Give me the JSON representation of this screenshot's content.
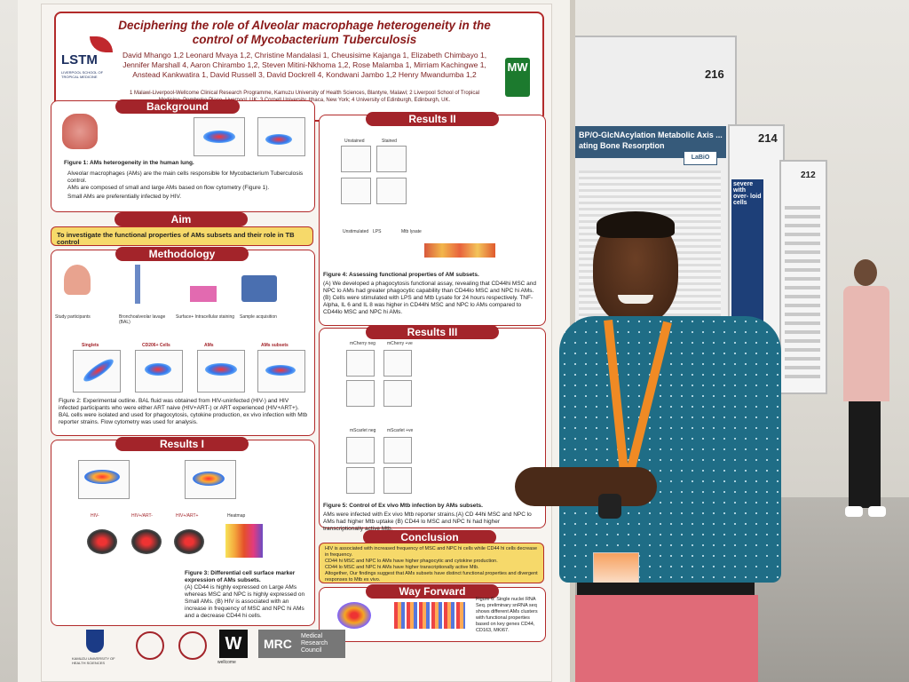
{
  "poster": {
    "title": "Deciphering the role of Alveolar macrophage heterogeneity in the control of Mycobacterium Tuberculosis",
    "authors": "David Mhango 1,2 Leonard Mvaya 1,2, Christine Mandalasi 1, Cheusisime Kajanga 1, Elizabeth Chimbayo 1, Jennifer Marshall 4, Aaron Chirambo 1,2, Steven Mitini-Nkhoma 1,2, Rose Malamba 1, Mirriam Kachingwe 1, Anstead Kankwatira 1, David Russell 3, David Dockrell 4, Kondwani Jambo 1,2 Henry Mwandumba 1,2",
    "affiliations": "1 Malawi-Liverpool-Wellcome Clinical Research Programme, Kamuzu University of Health Sciences, Blantyre, Malawi; 2 Liverpool School of Tropical Medicine, Pembroke Place, Liverpool, UK; 3 Cornell University, Ithaca, New York; 4 University of Edinburgh, Edinburgh, UK.",
    "logo_left": "LSTM",
    "logo_left_sub": "LIVERPOOL SCHOOL OF TROPICAL MEDICINE",
    "logo_right": "MW",
    "sections": {
      "background": "Background",
      "aim": "Aim",
      "methodology": "Methodology",
      "results1": "Results I",
      "results2": "Results II",
      "results3": "Results III",
      "conclusion": "Conclusion",
      "way_forward": "Way Forward"
    },
    "background_caption": "Figure 1: AMs heterogeneity in the human lung.",
    "background_bullets": [
      "Alveolar macrophages (AMs) are the main cells responsible for Mycobacterium Tuberculosis control.",
      "AMs are composed of small and large AMs based on flow cytometry (Figure 1).",
      "Small AMs are preferentially infected by HIV."
    ],
    "aim_text": "To investigate the functional properties of AMs subsets and their role in TB control",
    "method_caption": "Figure 2: Experimental outline. BAL fluid was obtained from HIV-uninfected (HIV-) and HIV infected participants who were either ART naive (HIV+ART-) or ART experienced (HIV+ART+). BAL cells were isolated and used for phagocytosis, cytokine production, ex vivo infection with Mtb reporter strains. Flow cytometry was used for analysis.",
    "method_steps": [
      "Study participants",
      "Bronchoalveolar lavage (BAL)",
      "Surface+ Intracellular staining",
      "Sample acquisition"
    ],
    "gates": [
      "Singlets",
      "CD206+ Cells",
      "AMs",
      "AMs subsets"
    ],
    "results1_caption": "Figure 3: Differential cell surface marker expression of AMs subsets.",
    "results1_text": "(A) CD44 is highly expressed on Large AMs whereas MSC and NPC is highly expressed on Small AMs. (B) HIV is associated with an increase in frequency of MSC and NPC hi AMs and a decrease CD44 hi cells.",
    "results1_groups": [
      "HIV-",
      "HIV+/ART-",
      "HIV+/ART+",
      "Heatmap"
    ],
    "results2_caption": "Figure 4: Assessing functional properties of AM subsets.",
    "results2_text": "(A) We developed a phagocytosis functional assay, revealing that CD44hi MSC and NPC lo AMs had greater phagocytic capability than CD44lo MSC and NPC hi AMs. (B) Cells were stimulated with LPS and Mtb Lysate for 24 hours respectively. TNF-Alpha, IL 6 and IL 8 was higher in CD44hi MSC and NPC lo AMs compared to CD44lo MSC and NPC hi AMs.",
    "results2_panels": [
      "Unstained",
      "Stained",
      "Unstimulated",
      "LPS",
      "Mtb lysate"
    ],
    "results3_caption": "Figure 5: Control of Ex vivo Mtb infection by AMs subsets.",
    "results3_text": "AMs were infected with Ex vivo Mtb reporter strains.(A) CD 44hi MSC and NPC lo AMs had higher Mtb uptake (B) CD44 lo MSC and NPC hi had higher transcriptionally active Mtb.",
    "results3_panels": [
      "mCherry neg",
      "mCherry +ve",
      "mScarlet neg",
      "mScarlet +ve"
    ],
    "conclusion_bullets": [
      "HIV is associated with increased frequency of MSC and NPC hi cells while CD44 hi cells decrease in frequency.",
      "CD44 hi MSC and NPC lo AMs have higher phagocytic and cytokine production.",
      "CD44 lo MSC and NPC hi AMs have higher transcriptionally active Mtb.",
      "Altogether, Our findings suggest that AMs subsets have distinct functional properties and divergent responses to Mtb ex vivo."
    ],
    "way_forward_text": "Figure 6: Single nuclei RNA Seq. preliminary snRNA seq shows different AMs clusters with functional properties based on key genes CD44, CD163, MKI67.",
    "footer_logos": [
      "KAMUZU UNIVERSITY OF HEALTH SCIENCES",
      "wellcome",
      "MRC",
      "Medical Research Council"
    ],
    "footer_w": "W"
  },
  "side_posters": {
    "board_216": "216",
    "board_214": "214",
    "board_212": "212",
    "poster_title": "BP/O-GlcNAcylation Metabolic Axis ... ating Bone Resorption",
    "poster_logo": "LaBiO",
    "poster_small_text": "severe with over- loid cells"
  },
  "colors": {
    "accent": "#a3242a",
    "yellow": "#f6d96a",
    "shirt": "#1f6d86",
    "lanyard": "#f08a24",
    "pants": "#e06b78"
  }
}
